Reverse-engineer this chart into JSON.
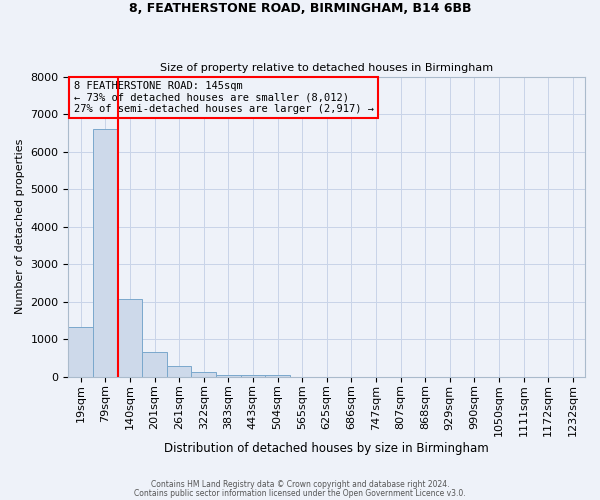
{
  "title": "8, FEATHERSTONE ROAD, BIRMINGHAM, B14 6BB",
  "subtitle": "Size of property relative to detached houses in Birmingham",
  "xlabel": "Distribution of detached houses by size in Birmingham",
  "ylabel": "Number of detached properties",
  "bar_labels": [
    "19sqm",
    "79sqm",
    "140sqm",
    "201sqm",
    "261sqm",
    "322sqm",
    "383sqm",
    "443sqm",
    "504sqm",
    "565sqm",
    "625sqm",
    "686sqm",
    "747sqm",
    "807sqm",
    "868sqm",
    "929sqm",
    "990sqm",
    "1050sqm",
    "1111sqm",
    "1172sqm",
    "1232sqm"
  ],
  "bar_values": [
    1320,
    6600,
    2060,
    650,
    290,
    130,
    50,
    50,
    50,
    0,
    0,
    0,
    0,
    0,
    0,
    0,
    0,
    0,
    0,
    0,
    0
  ],
  "bar_color": "#cdd9ea",
  "bar_edge_color": "#7aa8cc",
  "vline_color": "red",
  "ylim": [
    0,
    8000
  ],
  "yticks": [
    0,
    1000,
    2000,
    3000,
    4000,
    5000,
    6000,
    7000,
    8000
  ],
  "annotation_line1": "8 FEATHERSTONE ROAD: 145sqm",
  "annotation_line2": "← 73% of detached houses are smaller (8,012)",
  "annotation_line3": "27% of semi-detached houses are larger (2,917) →",
  "annotation_box_color": "red",
  "grid_color": "#c8d4e8",
  "bg_color": "#eef2f9",
  "footer1": "Contains HM Land Registry data © Crown copyright and database right 2024.",
  "footer2": "Contains public sector information licensed under the Open Government Licence v3.0."
}
